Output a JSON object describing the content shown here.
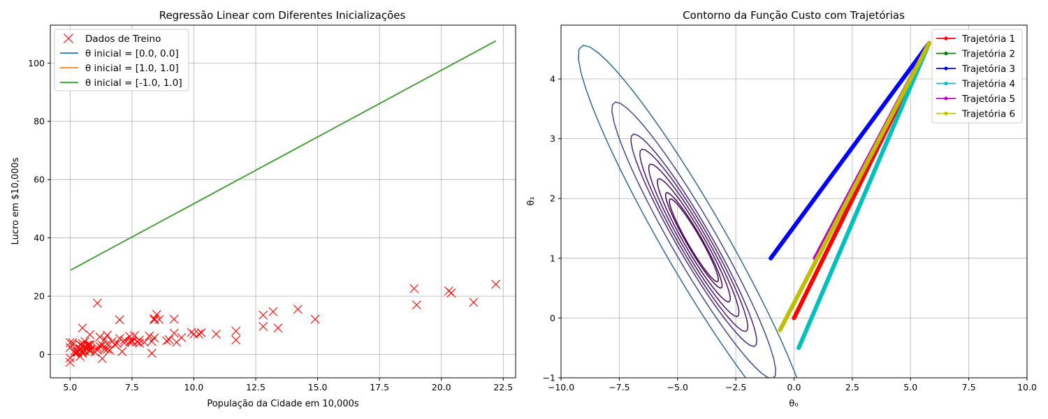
{
  "chart_data": [
    {
      "type": "scatter",
      "title": "Regressão Linear com Diferentes Inicializações",
      "xlabel": "População da Cidade em 10,000s",
      "ylabel": "Lucro em $10,000s",
      "xlim": [
        4.2,
        23.0
      ],
      "ylim": [
        -8,
        113
      ],
      "xticks": [
        5.0,
        7.5,
        10.0,
        12.5,
        15.0,
        17.5,
        20.0,
        22.5
      ],
      "xtick_labels": [
        "5.0",
        "7.5",
        "10.0",
        "12.5",
        "15.0",
        "17.5",
        "20.0",
        "22.5"
      ],
      "yticks": [
        0,
        20,
        40,
        60,
        80,
        100
      ],
      "ytick_labels": [
        "0",
        "20",
        "40",
        "60",
        "80",
        "100"
      ],
      "grid": true,
      "legend_position": "top-left",
      "scatter": {
        "name": "Dados de Treino",
        "color": "#ff0000",
        "marker": "x",
        "points": [
          [
            6.1,
            17.6
          ],
          [
            5.5,
            9.1
          ],
          [
            8.5,
            13.7
          ],
          [
            7.0,
            11.9
          ],
          [
            5.8,
            6.8
          ],
          [
            8.4,
            11.9
          ],
          [
            7.5,
            4.3
          ],
          [
            8.6,
            12.0
          ],
          [
            6.5,
            6.6
          ],
          [
            5.1,
            3.3
          ],
          [
            5.7,
            3.3
          ],
          [
            14.2,
            15.5
          ],
          [
            5.7,
            3.1
          ],
          [
            6.2,
            6.0
          ],
          [
            5.5,
            2.9
          ],
          [
            7.4,
            4.3
          ],
          [
            5.4,
            3.4
          ],
          [
            5.5,
            0.8
          ],
          [
            6.1,
            2.4
          ],
          [
            6.8,
            3.4
          ],
          [
            5.0,
            -1.2
          ],
          [
            5.8,
            1.1
          ],
          [
            12.8,
            13.5
          ],
          [
            10.9,
            7.0
          ],
          [
            9.2,
            12.1
          ],
          [
            6.1,
            1.5
          ],
          [
            20.3,
            21.8
          ],
          [
            20.4,
            21.1
          ],
          [
            19.0,
            17.0
          ],
          [
            13.4,
            9.1
          ],
          [
            10.2,
            7.0
          ],
          [
            8.3,
            0.4
          ],
          [
            5.5,
            0.3
          ],
          [
            6.5,
            3.6
          ],
          [
            6.4,
            5.2
          ],
          [
            5.4,
            -0.7
          ],
          [
            7.2,
            4.0
          ],
          [
            5.7,
            3.1
          ],
          [
            7.5,
            4.8
          ],
          [
            5.8,
            3.4
          ],
          [
            7.1,
            1.0
          ],
          [
            8.0,
            4.2
          ],
          [
            9.9,
            7.6
          ],
          [
            5.4,
            2.1
          ],
          [
            5.7,
            1.9
          ],
          [
            6.5,
            1.8
          ],
          [
            12.8,
            9.6
          ],
          [
            9.2,
            7.3
          ],
          [
            5.0,
            2.4
          ],
          [
            5.8,
            3.1
          ],
          [
            5.2,
            0.4
          ],
          [
            5.4,
            1.9
          ],
          [
            5.2,
            0.7
          ],
          [
            6.3,
            3.2
          ],
          [
            5.3,
            0.7
          ],
          [
            7.4,
            6.2
          ],
          [
            7.6,
            6.5
          ],
          [
            11.7,
            5.0
          ],
          [
            5.8,
            1.8
          ],
          [
            9.3,
            4.2
          ],
          [
            8.4,
            12.3
          ],
          [
            21.3,
            17.9
          ],
          [
            18.9,
            22.6
          ],
          [
            22.2,
            24.1
          ],
          [
            7.7,
            4.3
          ],
          [
            5.5,
            1.3
          ],
          [
            5.3,
            1.0
          ],
          [
            5.2,
            1.4
          ],
          [
            5.0,
            4.1
          ],
          [
            6.0,
            0.8
          ],
          [
            5.6,
            1.2
          ],
          [
            6.9,
            3.8
          ],
          [
            10.3,
            7.5
          ],
          [
            7.8,
            5.0
          ],
          [
            7.8,
            3.9
          ],
          [
            8.4,
            5.7
          ],
          [
            8.9,
            4.7
          ],
          [
            9.5,
            5.8
          ],
          [
            11.7,
            8.0
          ],
          [
            13.2,
            14.7
          ],
          [
            14.9,
            12.1
          ],
          [
            8.2,
            6.3
          ],
          [
            7.2,
            4.9
          ],
          [
            7.0,
            5.5
          ],
          [
            6.4,
            1.8
          ],
          [
            5.6,
            2.3
          ],
          [
            5.0,
            -2.7
          ],
          [
            5.6,
            4.4
          ],
          [
            6.2,
            2.8
          ],
          [
            6.7,
            4.5
          ],
          [
            5.1,
            4.0
          ],
          [
            6.3,
            -1.4
          ],
          [
            6.6,
            1.5
          ],
          [
            5.5,
            3.8
          ],
          [
            8.3,
            4.5
          ],
          [
            9.0,
            5.1
          ],
          [
            10.0,
            7.0
          ],
          [
            5.8,
            1.6
          ]
        ]
      },
      "series": [
        {
          "name": "θ inicial = [0.0, 0.0]",
          "color": "#1f77b4",
          "x": [
            5.03,
            22.2
          ],
          "y": [
            29.0,
            107.6
          ]
        },
        {
          "name": "θ inicial = [1.0, 1.0]",
          "color": "#ff7f0e",
          "x": [
            5.03,
            22.2
          ],
          "y": [
            29.0,
            107.6
          ]
        },
        {
          "name": "θ inicial = [-1.0, 1.0]",
          "color": "#2ca02c",
          "x": [
            5.03,
            22.2
          ],
          "y": [
            29.0,
            107.6
          ]
        }
      ]
    },
    {
      "type": "line",
      "title": "Contorno da Função Custo com Trajetórias",
      "xlabel": "θ₀",
      "ylabel": "θ₁",
      "xlim": [
        -10,
        10
      ],
      "ylim": [
        -1,
        4.9
      ],
      "xticks": [
        -10,
        -7.5,
        -5,
        -2.5,
        0,
        2.5,
        5,
        7.5,
        10
      ],
      "xtick_labels": [
        "−10.0",
        "−7.5",
        "−5.0",
        "−2.5",
        "0.0",
        "2.5",
        "5.0",
        "7.5",
        "10.0"
      ],
      "yticks": [
        -1,
        0,
        1,
        2,
        3,
        4
      ],
      "ytick_labels": [
        "−1",
        "0",
        "1",
        "2",
        "3",
        "4"
      ],
      "grid": true,
      "legend_position": "top-right",
      "contour": {
        "center": [
          -4.3,
          1.3
        ],
        "a": 45.0,
        "b": 65.0,
        "c": 104.0,
        "levels": [
          4.85,
          6.45,
          10.75,
          16.45,
          23.55,
          31.95,
          54.15,
          107.75
        ],
        "colors": [
          "#440154",
          "#440154",
          "#46085c",
          "#471365",
          "#471a6e",
          "#482878",
          "#3e4a89",
          "#31688e"
        ]
      },
      "series": [
        {
          "name": "Trajetória 1",
          "color": "#ff0000",
          "start": [
            0.0,
            0.0
          ],
          "end": [
            5.8,
            4.6
          ]
        },
        {
          "name": "Trajetória 2",
          "color": "#008000",
          "start": [
            1.0,
            1.0
          ],
          "end": [
            5.8,
            4.6
          ]
        },
        {
          "name": "Trajetória 3",
          "color": "#0000ff",
          "start": [
            -1.0,
            1.0
          ],
          "end": [
            5.8,
            4.6
          ]
        },
        {
          "name": "Trajetória 4",
          "color": "#00bfbf",
          "start": [
            0.2,
            -0.5
          ],
          "end": [
            5.8,
            4.6
          ]
        },
        {
          "name": "Trajetória 5",
          "color": "#bf00bf",
          "start": [
            0.9,
            1.0
          ],
          "end": [
            5.8,
            4.6
          ]
        },
        {
          "name": "Trajetória 6",
          "color": "#bfbf00",
          "start": [
            -0.6,
            -0.2
          ],
          "end": [
            5.8,
            4.6
          ]
        }
      ]
    }
  ]
}
